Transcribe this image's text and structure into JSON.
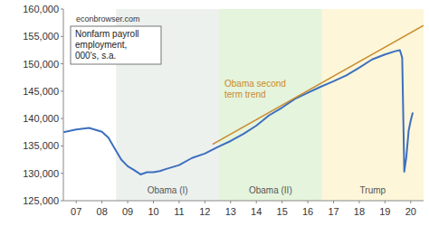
{
  "chart_data": {
    "type": "line",
    "xlim": [
      2007,
      2021
    ],
    "xticks": [
      {
        "value": 2007.5,
        "label": "07"
      },
      {
        "value": 2008.5,
        "label": "08"
      },
      {
        "value": 2009.5,
        "label": "09"
      },
      {
        "value": 2010.5,
        "label": "10"
      },
      {
        "value": 2011.5,
        "label": "11"
      },
      {
        "value": 2012.5,
        "label": "12"
      },
      {
        "value": 2013.5,
        "label": "13"
      },
      {
        "value": 2014.5,
        "label": "14"
      },
      {
        "value": 2015.5,
        "label": "15"
      },
      {
        "value": 2016.5,
        "label": "16"
      },
      {
        "value": 2017.5,
        "label": "17"
      },
      {
        "value": 2018.5,
        "label": "18"
      },
      {
        "value": 2019.5,
        "label": "19"
      },
      {
        "value": 2020.5,
        "label": "20"
      }
    ],
    "ylim": [
      125000,
      160000
    ],
    "yticks": [
      {
        "value": 125000,
        "label": "125,000"
      },
      {
        "value": 130000,
        "label": "130,000"
      },
      {
        "value": 135000,
        "label": "135,000"
      },
      {
        "value": 140000,
        "label": "140,000"
      },
      {
        "value": 145000,
        "label": "145,000"
      },
      {
        "value": 150000,
        "label": "150,000"
      },
      {
        "value": 155000,
        "label": "155,000"
      },
      {
        "value": 160000,
        "label": "160,000"
      }
    ],
    "grid": false,
    "periods": [
      {
        "label": "Obama (I)",
        "start": 2009.05,
        "end": 2013.05,
        "color": "#edf1ee"
      },
      {
        "label": "Obama (II)",
        "start": 2013.05,
        "end": 2017.05,
        "color": "#e5f4dc"
      },
      {
        "label": "Trump",
        "start": 2017.05,
        "end": 2021,
        "color": "#fdf6d8"
      }
    ],
    "series": [
      {
        "color": "#3d6fbf",
        "x": [
          2007.0,
          2007.5,
          2008.0,
          2008.5,
          2008.75,
          2009.0,
          2009.25,
          2009.5,
          2009.75,
          2010.0,
          2010.25,
          2010.5,
          2010.75,
          2011.0,
          2011.5,
          2012.0,
          2012.5,
          2013.0,
          2013.5,
          2014.0,
          2014.5,
          2015.0,
          2015.5,
          2016.0,
          2016.5,
          2017.0,
          2017.5,
          2018.0,
          2018.5,
          2019.0,
          2019.5,
          2019.9,
          2020.08,
          2020.17,
          2020.25,
          2020.33,
          2020.42,
          2020.5,
          2020.58
        ],
        "values": [
          137500,
          138000,
          138300,
          137600,
          136500,
          134500,
          132500,
          131300,
          130600,
          129800,
          130200,
          130200,
          130400,
          130800,
          131500,
          132800,
          133600,
          134800,
          135900,
          137200,
          138700,
          140600,
          142000,
          143600,
          144700,
          145800,
          146800,
          147900,
          149300,
          150800,
          151700,
          152300,
          152500,
          151100,
          130300,
          133000,
          137800,
          139600,
          141100
        ]
      },
      {
        "color": "#c98a2e",
        "x": [
          2012.8,
          2021.0
        ],
        "values": [
          135300,
          157000
        ]
      }
    ],
    "annotations": [
      {
        "text": "econbrowser.com"
      },
      {
        "lines": [
          "Nonfarm payroll",
          "employment,",
          "000's, s.a."
        ]
      },
      {
        "lines": [
          "Obama second",
          "term trend"
        ],
        "color": "#c98a2e"
      }
    ]
  }
}
